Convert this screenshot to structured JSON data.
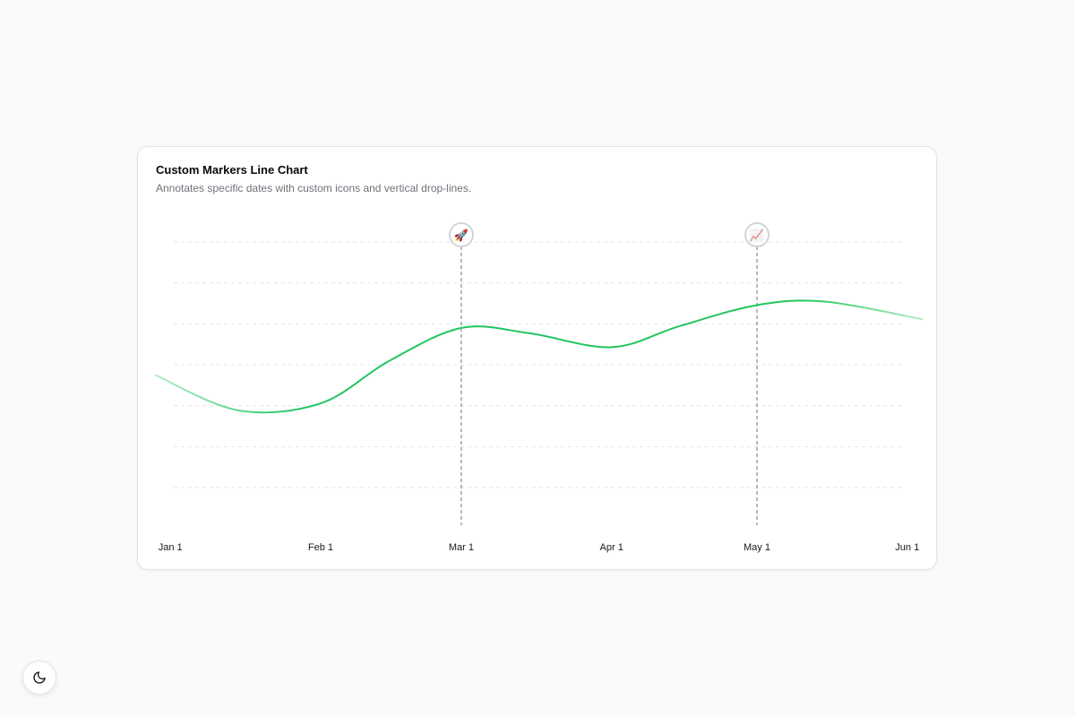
{
  "card": {
    "title": "Custom Markers Line Chart",
    "subtitle": "Annotates specific dates with custom icons and vertical drop-lines."
  },
  "chart_data": {
    "type": "line",
    "title": "Custom Markers Line Chart",
    "subtitle": "Annotates specific dates with custom icons and vertical drop-lines.",
    "xlabel": "",
    "ylabel": "",
    "x_tick_labels": [
      "Jan 1",
      "Feb 1",
      "Mar 1",
      "Apr 1",
      "May 1",
      "Jun 1"
    ],
    "x_tick_dates": [
      "2024-01-01",
      "2024-02-01",
      "2024-03-01",
      "2024-04-01",
      "2024-05-01",
      "2024-06-01"
    ],
    "xlim": [
      "2023-12-29",
      "2024-06-04"
    ],
    "ylim": [
      0,
      70
    ],
    "grid": "horizontal dashed",
    "y_axis_labels_visible": false,
    "series": [
      {
        "color": "#22c55e",
        "points": [
          {
            "x": "2023-12-29",
            "y": 32
          },
          {
            "x": "2024-01-15",
            "y": 22
          },
          {
            "x": "2024-02-01",
            "y": 24
          },
          {
            "x": "2024-02-15",
            "y": 36
          },
          {
            "x": "2024-03-01",
            "y": 45.5
          },
          {
            "x": "2024-03-15",
            "y": 44
          },
          {
            "x": "2024-04-01",
            "y": 40
          },
          {
            "x": "2024-04-15",
            "y": 46
          },
          {
            "x": "2024-05-01",
            "y": 52
          },
          {
            "x": "2024-05-15",
            "y": 53
          },
          {
            "x": "2024-06-04",
            "y": 48
          }
        ]
      }
    ],
    "markers": [
      {
        "x": "2024-03-01",
        "icon": "rocket-icon",
        "glyph": "🚀"
      },
      {
        "x": "2024-05-01",
        "icon": "chart-increasing-icon",
        "glyph": "📈"
      }
    ]
  },
  "theme_toggle": {
    "icon": "moon-icon"
  }
}
